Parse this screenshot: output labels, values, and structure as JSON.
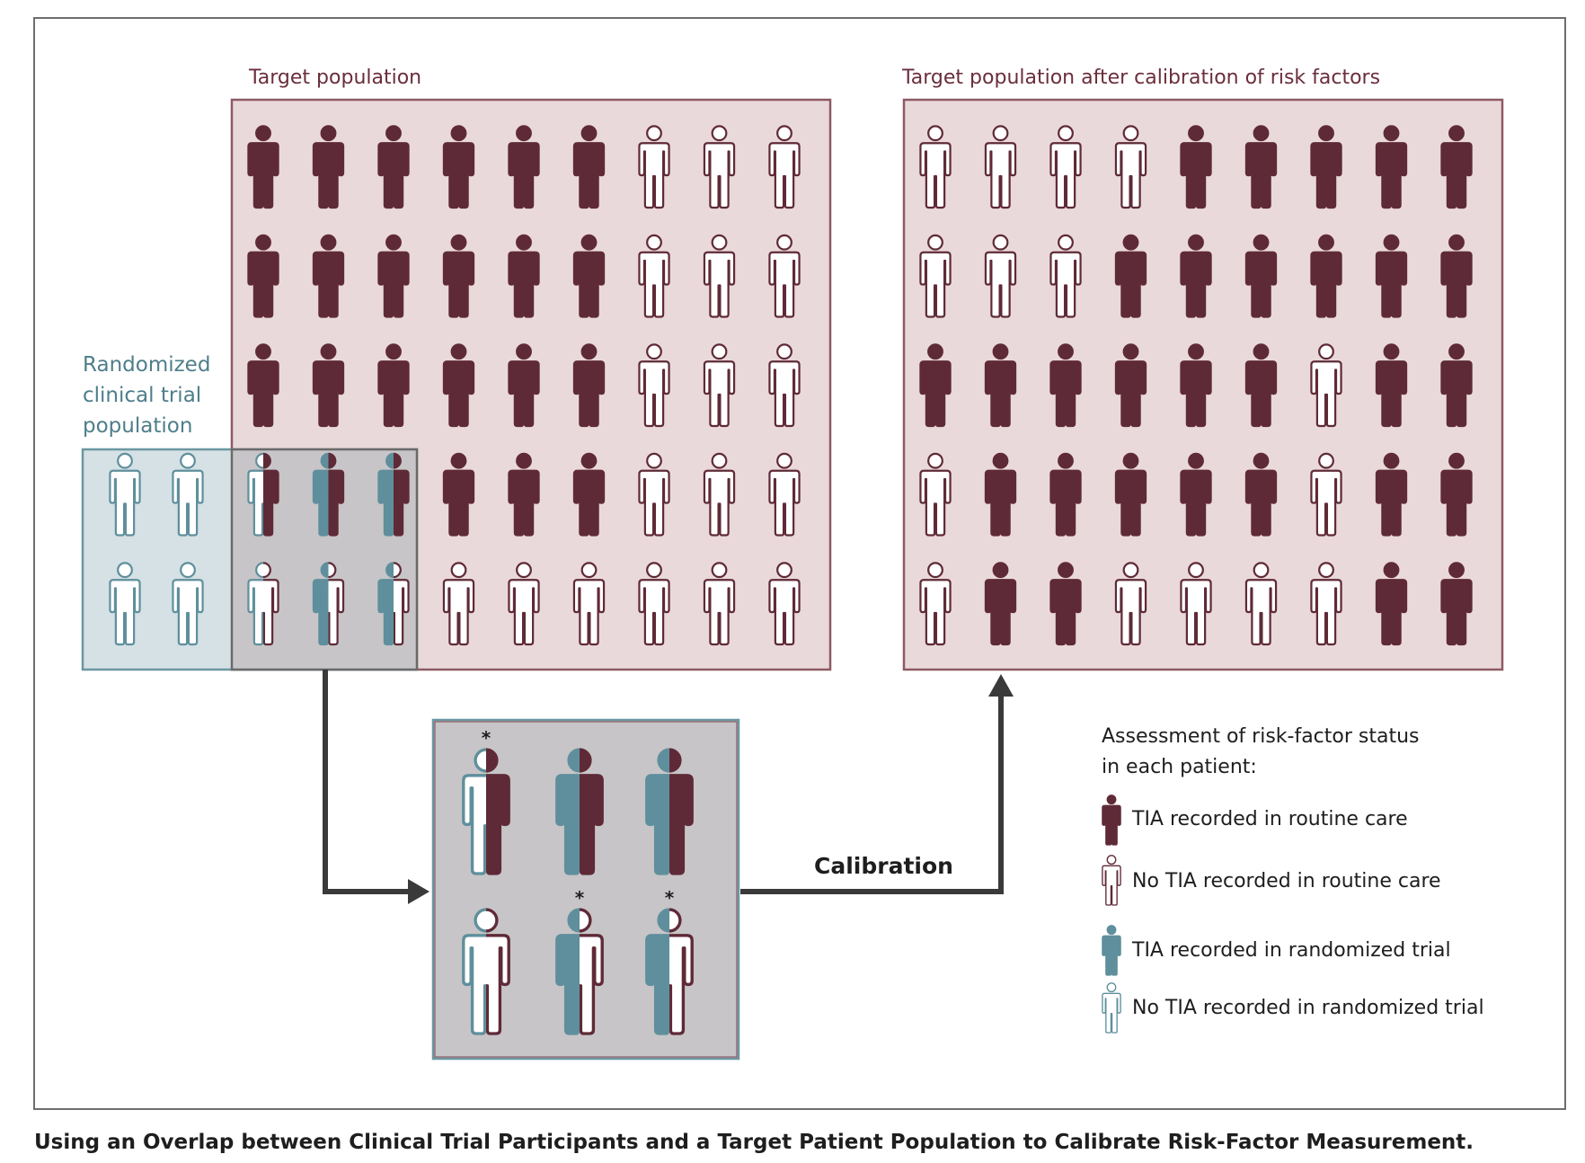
{
  "labels": {
    "target_population": "Target population",
    "target_after": "Target population after calibration of risk factors",
    "rct_line1": "Randomized",
    "rct_line2": "clinical trial",
    "rct_line3": "population",
    "calibration": "Calibration",
    "legend_title1": "Assessment of risk-factor status",
    "legend_title2": "in each patient:",
    "caption": "Using an Overlap between Clinical Trial Participants and a Target Patient Population to Calibrate Risk-Factor Measurement."
  },
  "legend": [
    {
      "type": "routine-filled",
      "label": "TIA recorded in routine care"
    },
    {
      "type": "routine-hollow",
      "label": "No TIA recorded in routine care"
    },
    {
      "type": "trial-filled",
      "label": "TIA recorded in randomized trial"
    },
    {
      "type": "trial-hollow",
      "label": "No TIA recorded in randomized trial"
    }
  ],
  "colors": {
    "routine": "#5f2a37",
    "trial": "#5f8f9c",
    "panel_fill": "#ead9da",
    "panel_border": "#8e5a64",
    "trial_panel_fill": "#d5e1e5",
    "trial_panel_border": "#6b97a2",
    "overlap_fill": "#c7c5c7",
    "arrow": "#3a3a3a"
  },
  "icon_codes": {
    "R": "routine TIA",
    "r": "routine no TIA",
    "T": "trial TIA",
    "t": "trial no TIA",
    "tR": "trial no TIA / routine TIA",
    "TR": "trial TIA / routine TIA",
    "tr": "trial no TIA / routine no TIA",
    "Tr": "trial TIA / routine no TIA"
  },
  "target_grid": [
    [
      "R",
      "R",
      "R",
      "R",
      "R",
      "R",
      "r",
      "r",
      "r"
    ],
    [
      "R",
      "R",
      "R",
      "R",
      "R",
      "R",
      "r",
      "r",
      "r"
    ],
    [
      "R",
      "R",
      "R",
      "R",
      "R",
      "R",
      "r",
      "r",
      "r"
    ],
    [
      "tR",
      "TR",
      "TR",
      "R",
      "R",
      "R",
      "r",
      "r",
      "r"
    ],
    [
      "tr",
      "Tr",
      "Tr",
      "r",
      "r",
      "r",
      "r",
      "r",
      "r"
    ]
  ],
  "trial_only_grid": [
    [
      "t",
      "t"
    ],
    [
      "t",
      "t"
    ]
  ],
  "calibrated_grid": [
    [
      "r",
      "r",
      "r",
      "r",
      "R",
      "R",
      "R",
      "R",
      "R"
    ],
    [
      "r",
      "r",
      "r",
      "R",
      "R",
      "R",
      "R",
      "R",
      "R"
    ],
    [
      "R",
      "R",
      "R",
      "R",
      "R",
      "R",
      "r",
      "R",
      "R"
    ],
    [
      "r",
      "R",
      "R",
      "R",
      "R",
      "R",
      "r",
      "R",
      "R"
    ],
    [
      "r",
      "R",
      "R",
      "r",
      "r",
      "r",
      "r",
      "R",
      "R"
    ]
  ],
  "calibration_box": {
    "icons": [
      [
        "tR",
        "TR",
        "TR"
      ],
      [
        "tr",
        "Tr",
        "Tr"
      ]
    ],
    "starred": [
      [
        true,
        false,
        false
      ],
      [
        false,
        true,
        true
      ]
    ],
    "star_symbol": "*"
  }
}
